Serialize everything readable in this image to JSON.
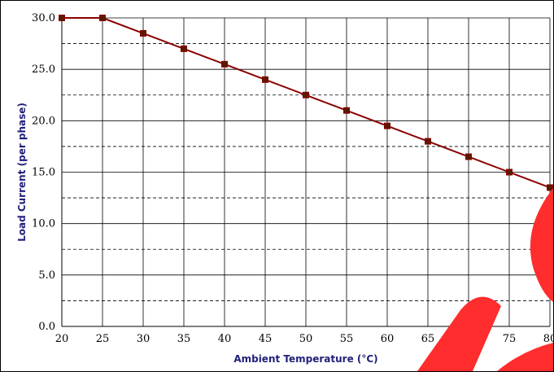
{
  "chart_data": {
    "type": "line",
    "xlabel": "Ambient Temperature (°C)",
    "ylabel": "Load Current (per phase)",
    "x": [
      20,
      25,
      30,
      35,
      40,
      45,
      50,
      55,
      60,
      65,
      70,
      75,
      80
    ],
    "series": [
      {
        "values": [
          30.0,
          30.0,
          28.5,
          27.0,
          25.5,
          24.0,
          22.5,
          21.0,
          19.5,
          18.0,
          16.5,
          15.0,
          13.5
        ]
      }
    ],
    "xlim": [
      20,
      80
    ],
    "ylim": [
      0,
      30
    ],
    "x_ticks": [
      "20",
      "25",
      "30",
      "35",
      "40",
      "45",
      "50",
      "55",
      "60",
      "65",
      "70",
      "75",
      "80"
    ],
    "y_ticks": [
      "0.0",
      "5.0",
      "10.0",
      "15.0",
      "20.0",
      "25.0",
      "30.0"
    ],
    "grid": {
      "major_solid": true,
      "minor_dashed_y": [
        2.5,
        7.5,
        12.5,
        17.5,
        22.5,
        27.5
      ]
    },
    "colors": {
      "line": "#8b0000",
      "marker": "#8b0000",
      "marker_inner": "#5a1a00",
      "axis_title": "#1f1f7a",
      "watermark": "#ff2d2d"
    }
  }
}
